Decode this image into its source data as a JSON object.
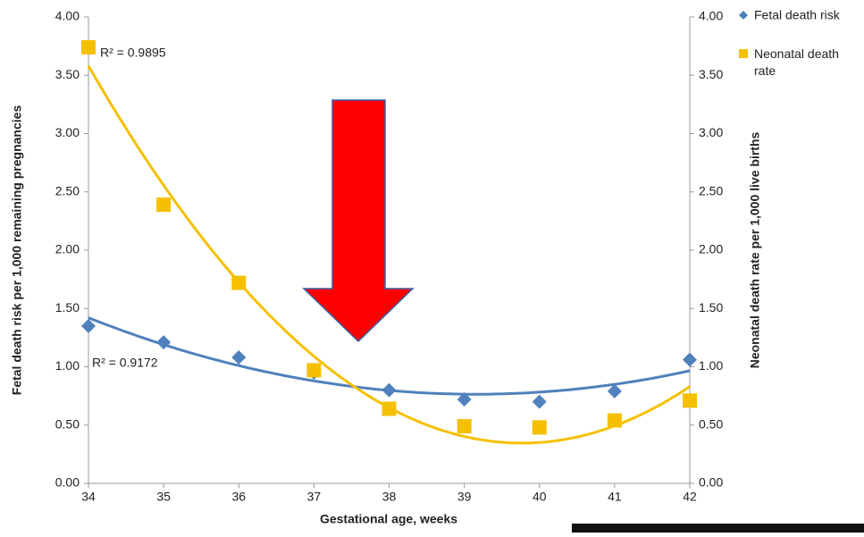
{
  "chart_data": {
    "type": "scatter",
    "x_label": "Gestational age, weeks",
    "y_label": "Fetal death risk per 1,000 remaining pregnancies",
    "y2_label": "Neonatal death rate per 1,000 live births",
    "x": [
      34,
      35,
      36,
      37,
      38,
      39,
      40,
      41,
      42
    ],
    "xlim": [
      34,
      42
    ],
    "xticks": [
      34,
      35,
      36,
      37,
      38,
      39,
      40,
      41,
      42
    ],
    "ylim": [
      0,
      4
    ],
    "yticks": [
      {
        "value": 0,
        "label": "0.00"
      },
      {
        "value": 0.5,
        "label": "0.50"
      },
      {
        "value": 1,
        "label": "1.00"
      },
      {
        "value": 1.5,
        "label": "1.50"
      },
      {
        "value": 2,
        "label": "2.00"
      },
      {
        "value": 2.5,
        "label": "2.50"
      },
      {
        "value": 3,
        "label": "3.00"
      },
      {
        "value": 3.5,
        "label": "3.50"
      },
      {
        "value": 4,
        "label": "4.00"
      }
    ],
    "y2lim": [
      0,
      4
    ],
    "y2ticks": [
      {
        "value": 0,
        "label": "0.00"
      },
      {
        "value": 0.5,
        "label": "0.50"
      },
      {
        "value": 1,
        "label": "1.00"
      },
      {
        "value": 1.5,
        "label": "1.50"
      },
      {
        "value": 2,
        "label": "2.00"
      },
      {
        "value": 2.5,
        "label": "2.50"
      },
      {
        "value": 3,
        "label": "3.00"
      },
      {
        "value": 3.5,
        "label": "3.50"
      },
      {
        "value": 4,
        "label": "4.00"
      }
    ],
    "series": [
      {
        "name": "Fetal death risk",
        "color": "#4f81bd",
        "marker": "diamond",
        "values": [
          1.35,
          1.21,
          1.08,
          0.95,
          0.8,
          0.72,
          0.7,
          0.79,
          1.06
        ],
        "trendline_label": "R² = 0.9172"
      },
      {
        "name": "Neonatal death rate",
        "color": "#f5c000",
        "marker": "square",
        "axis": "y2",
        "values": [
          3.74,
          2.39,
          1.72,
          0.97,
          0.64,
          0.49,
          0.48,
          0.54,
          0.71
        ],
        "trendline_label": "R² = 0.9895"
      }
    ],
    "legend": "right"
  }
}
